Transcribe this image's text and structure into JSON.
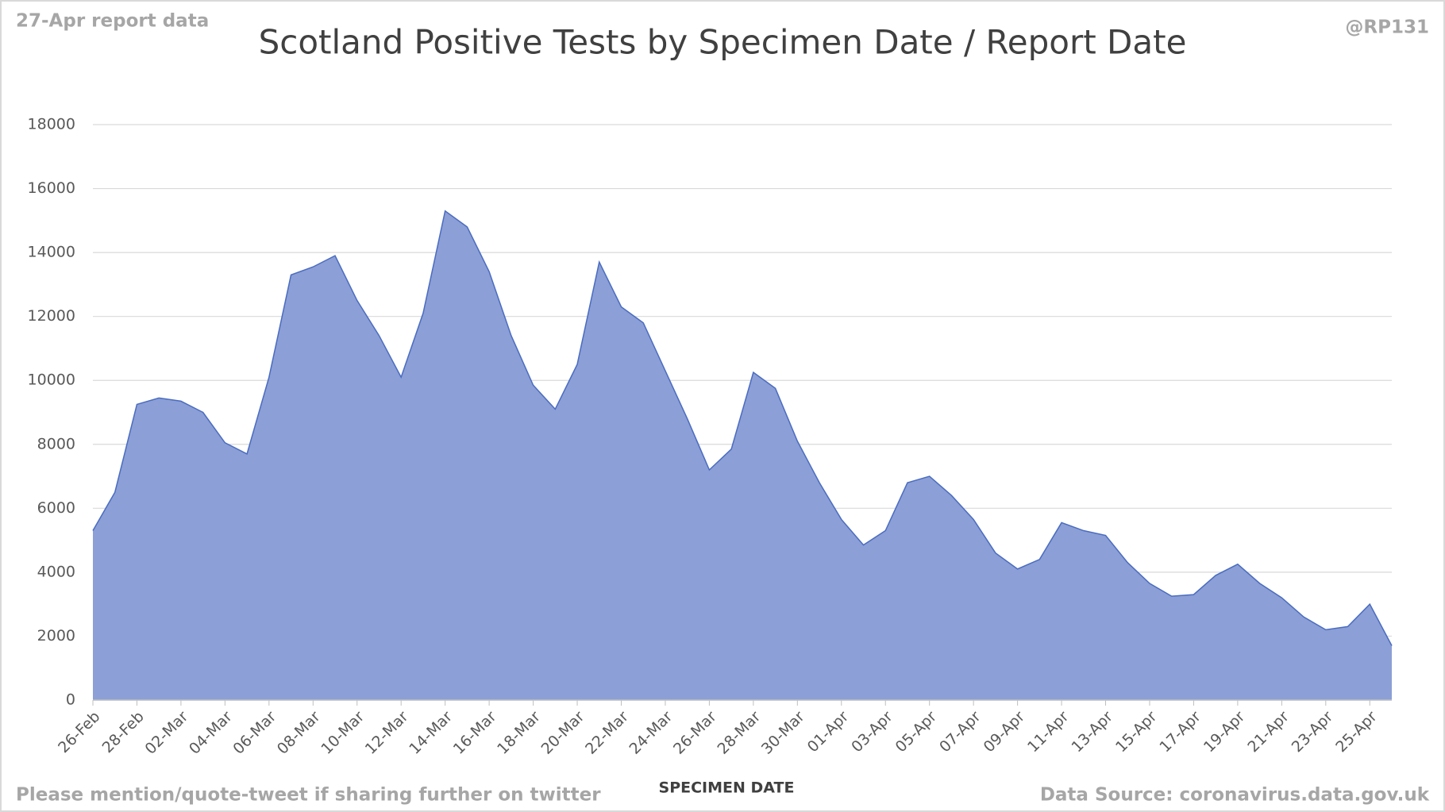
{
  "chart_data": {
    "type": "area",
    "title": "Scotland Positive Tests by Specimen Date / Report Date",
    "subtitle": "27-Apr report data",
    "credit": "@RP131",
    "x_label": "SPECIMEN DATE",
    "footer_left": "Please mention/quote-tweet if sharing further on twitter",
    "footer_right": "Data Source: coronavirus.data.gov.uk",
    "categories": [
      "26-Feb",
      null,
      "28-Feb",
      null,
      "02-Mar",
      null,
      "04-Mar",
      null,
      "06-Mar",
      null,
      "08-Mar",
      null,
      "10-Mar",
      null,
      "12-Mar",
      null,
      "14-Mar",
      null,
      "16-Mar",
      null,
      "18-Mar",
      null,
      "20-Mar",
      null,
      "22-Mar",
      null,
      "24-Mar",
      null,
      "26-Mar",
      null,
      "28-Mar",
      null,
      "30-Mar",
      null,
      "01-Apr",
      null,
      "03-Apr",
      null,
      "05-Apr",
      null,
      "07-Apr",
      null,
      "09-Apr",
      null,
      "11-Apr",
      null,
      "13-Apr",
      null,
      "15-Apr",
      null,
      "17-Apr",
      null,
      "19-Apr",
      null,
      "21-Apr",
      null,
      "23-Apr",
      null,
      "25-Apr",
      null
    ],
    "values": [
      5300,
      6500,
      9250,
      9450,
      9350,
      9000,
      8050,
      7700,
      10100,
      13300,
      13550,
      13900,
      12500,
      11400,
      10100,
      12100,
      15300,
      14800,
      13400,
      11400,
      9850,
      9100,
      10500,
      13700,
      12300,
      11800,
      10300,
      8800,
      7200,
      7850,
      10250,
      9750,
      8100,
      6800,
      5650,
      4850,
      5300,
      6800,
      7000,
      6400,
      5650,
      4600,
      4100,
      4400,
      5550,
      5300,
      5150,
      4300,
      3650,
      3250,
      3300,
      3900,
      4250,
      3650,
      3200,
      2600,
      2200,
      2300,
      3000,
      1700
    ],
    "color": "#8c9fd6",
    "line_color": "#4a6cc0",
    "ylim": [
      0,
      18000
    ],
    "yticks": [
      0,
      2000,
      4000,
      6000,
      8000,
      10000,
      12000,
      14000,
      16000,
      18000
    ],
    "grid": true
  }
}
